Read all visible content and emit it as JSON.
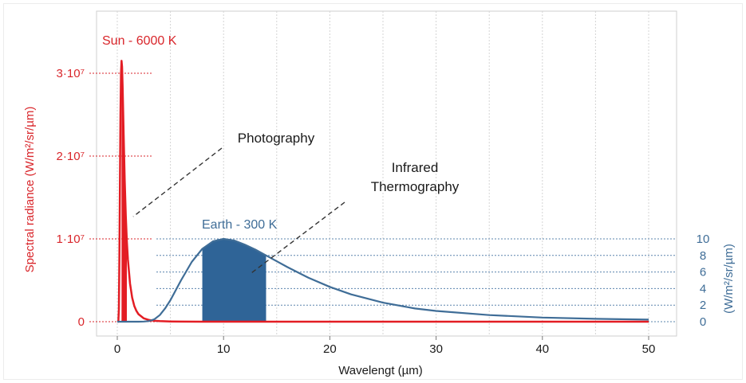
{
  "chart_data": {
    "type": "line",
    "xlabel": "Wavelengt (µm)",
    "xlim": [
      0,
      50
    ],
    "x_ticks": [
      "0",
      "10",
      "20",
      "30",
      "40",
      "50"
    ],
    "left_axis": {
      "label": "Spectral radiance (W/m²/sr/µm)",
      "range": [
        0,
        35000000
      ],
      "ticks": [
        {
          "value": 0,
          "label": "0"
        },
        {
          "value": 10000000,
          "label": "1·10⁷"
        },
        {
          "value": 20000000,
          "label": "2·10⁷"
        },
        {
          "value": 30000000,
          "label": "3·10⁷"
        }
      ],
      "color": "#d9262b"
    },
    "right_axis": {
      "label": "(W/m²/sr/µm)",
      "range": [
        0,
        10
      ],
      "ticks": [
        {
          "value": 0,
          "label": "0"
        },
        {
          "value": 2,
          "label": "2"
        },
        {
          "value": 4,
          "label": "4"
        },
        {
          "value": 6,
          "label": "6"
        },
        {
          "value": 8,
          "label": "8"
        },
        {
          "value": 10,
          "label": "10"
        }
      ],
      "color": "#3f6d97"
    },
    "series": [
      {
        "name": "Sun - 6000 K",
        "color": "#e31d24",
        "axis": "left",
        "x": [
          0.05,
          0.1,
          0.15,
          0.2,
          0.25,
          0.3,
          0.35,
          0.4,
          0.45,
          0.5,
          0.55,
          0.6,
          0.7,
          0.8,
          0.9,
          1.0,
          1.2,
          1.4,
          1.6,
          1.8,
          2.0,
          2.5,
          3.0,
          3.5,
          4.0,
          5.0,
          6.0,
          8.0,
          10,
          15,
          20,
          30,
          40,
          50
        ],
        "y": [
          0,
          2000,
          1500000,
          8000000,
          17000000,
          25000000,
          30000000,
          31500000,
          30800000,
          28500000,
          25500000,
          22500000,
          17000000,
          12800000,
          9700000,
          7500000,
          4600000,
          2900000,
          1900000,
          1300000,
          900000,
          400000,
          200000,
          110000,
          70000,
          30000,
          15000,
          5000,
          2000,
          500,
          200,
          50,
          20,
          10
        ]
      },
      {
        "name": "Earth - 300 K",
        "color": "#3f6d97",
        "axis": "right",
        "x": [
          0,
          1,
          2,
          2.5,
          3,
          3.5,
          4,
          4.5,
          5,
          6,
          7,
          8,
          9,
          10,
          11,
          12,
          13,
          14,
          15,
          16,
          18,
          20,
          22,
          25,
          28,
          30,
          35,
          40,
          45,
          50
        ],
        "y": [
          0,
          0,
          0,
          0.02,
          0.08,
          0.3,
          0.8,
          1.6,
          2.6,
          5.0,
          7.2,
          8.8,
          9.7,
          10.0,
          9.8,
          9.3,
          8.7,
          8.0,
          7.3,
          6.6,
          5.3,
          4.2,
          3.3,
          2.3,
          1.6,
          1.3,
          0.8,
          0.5,
          0.35,
          0.25
        ]
      }
    ],
    "bands": [
      {
        "series": "Sun - 6000 K",
        "from": 0.4,
        "to": 0.9,
        "color": "#e31d24"
      },
      {
        "series": "Earth - 300 K",
        "from": 8,
        "to": 14,
        "color": "#2f6497"
      }
    ],
    "grid": {
      "x": true,
      "y": false
    },
    "annotations": [
      {
        "text": [
          "Photography"
        ],
        "color": "#1a1a1a",
        "target": {
          "x": 0.9,
          "axis": "left",
          "y": 10000000
        }
      },
      {
        "text": [
          "Infrared",
          "Thermography"
        ],
        "color": "#1a1a1a",
        "target": {
          "x": 13.5,
          "axis": "right",
          "y": 6
        }
      }
    ]
  }
}
